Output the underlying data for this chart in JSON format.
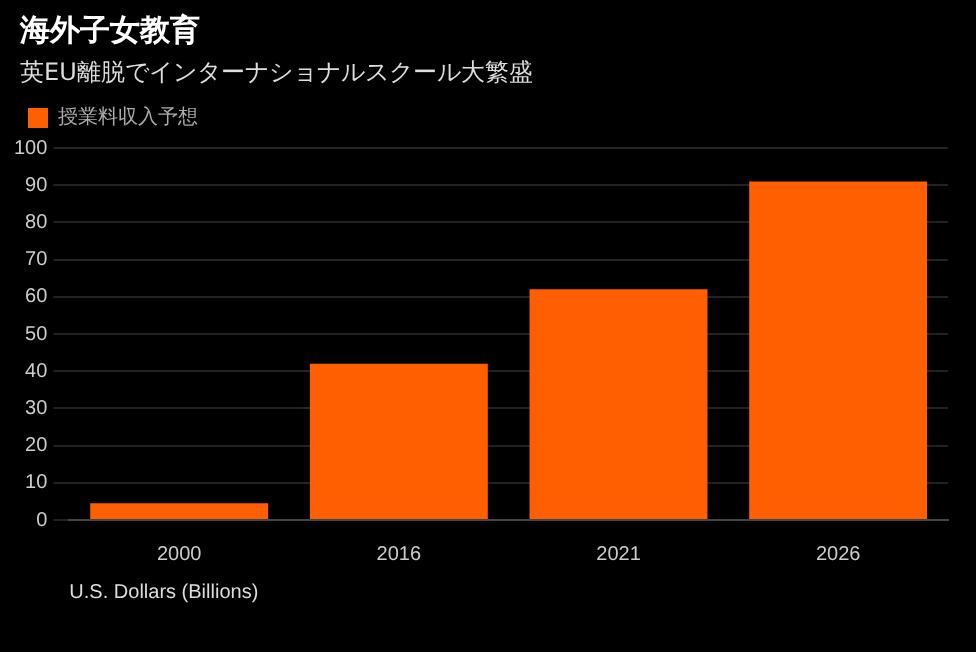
{
  "chart_data": {
    "type": "bar",
    "title": "海外子女教育",
    "subtitle": "英EU離脱でインターナショナルスクール大繁盛",
    "xlabel": "U.S. Dollars (Billions)",
    "categories": [
      "2000",
      "2016",
      "2021",
      "2026"
    ],
    "series": [
      {
        "name": "授業料収入予想",
        "color": "#ff5f00",
        "values": [
          4.5,
          42,
          62,
          91
        ]
      }
    ],
    "ylim": [
      0,
      100
    ],
    "yticks": [
      0,
      10,
      20,
      30,
      40,
      50,
      60,
      70,
      80,
      90,
      100
    ],
    "grid": "y",
    "legend": "top left"
  }
}
